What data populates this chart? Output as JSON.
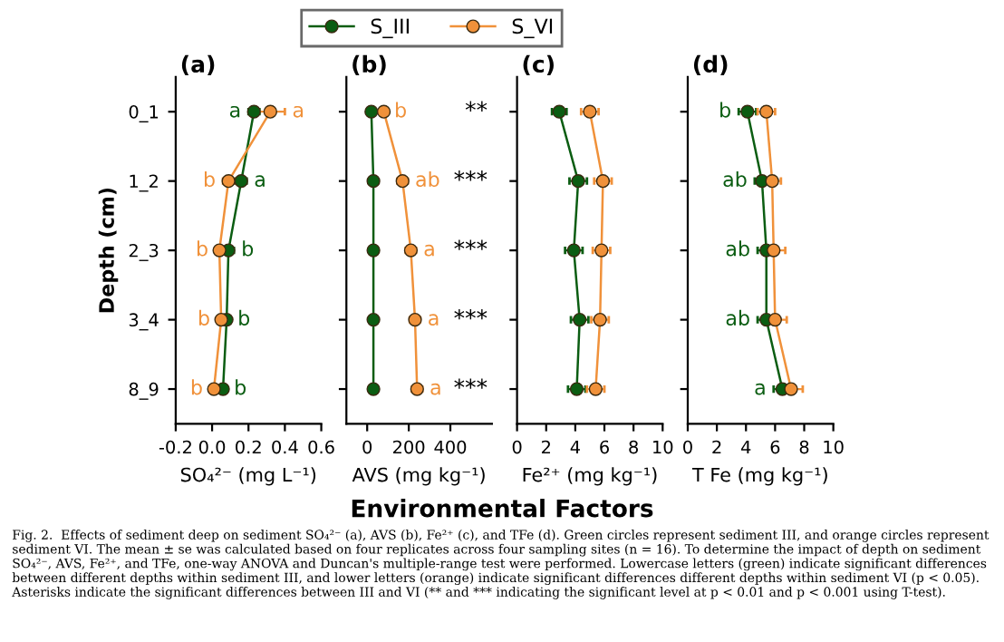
{
  "chart_data": [
    {
      "type": "line",
      "orientation": "horizontal",
      "title": "(a)",
      "ylabel": "Depth (cm)",
      "xlabel": "SO₄²⁻ (mg L⁻¹)",
      "categories": [
        "0_1",
        "1_2",
        "2_3",
        "3_4",
        "8_9"
      ],
      "xlim": [
        -0.2,
        0.6
      ],
      "xticks": [
        -0.2,
        {
          "value": 0,
          "label": "0.0"
        },
        0.2,
        0.4,
        0.6
      ],
      "marker": "circle",
      "grid": false,
      "legend": "top",
      "series": [
        {
          "name": "S_III",
          "color": "#0b5d12",
          "values": [
            0.23,
            0.16,
            0.09,
            0.08,
            0.06
          ],
          "errors": [
            0.03,
            0.03,
            0.03,
            0.02,
            0.02
          ],
          "value_labels": [
            "a",
            "a",
            "b",
            "b",
            "b"
          ]
        },
        {
          "name": "S_VI",
          "color": "#f0913a",
          "values": [
            0.32,
            0.09,
            0.04,
            0.05,
            0.01
          ],
          "errors": [
            0.08,
            0.03,
            0.02,
            0.02,
            0.02
          ],
          "value_labels": [
            "a",
            "b",
            "b",
            "b",
            "b"
          ]
        }
      ],
      "annotations": [
        "Environmental Factors",
        "Fig. 2.  Effects of sediment deep on sediment SO₄²⁻ (a), AVS (b), Fe²⁺ (c), and TFe (d). Green circles represent sediment III, and orange circles represent sediment VI. The mean ± se was calculated based on four replicates across four sampling sites (n = 16). To determine the impact of depth on sediment SO₄²⁻, AVS, Fe²⁺, and TFe, one-way ANOVA and Duncan's multiple-range test were performed. Lowercase letters (green) indicate significant differences between different depths within sediment III, and lower letters (orange) indicate significant differences different depths within sediment VI (p < 0.05). Asterisks indicate the significant differences between III and VI (** and *** indicating the significant level at p < 0.01 and p < 0.001 using T-test)."
      ]
    },
    {
      "type": "line",
      "orientation": "horizontal",
      "title": "(b)",
      "xlabel": "AVS (mg kg⁻¹)",
      "categories": [
        null,
        null,
        null,
        null,
        null
      ],
      "xlim": [
        -100,
        600
      ],
      "xticks": [
        0,
        200,
        400
      ],
      "marker": "circle",
      "grid": false,
      "series": [
        {
          "color": "#0b5d12",
          "values": [
            20,
            30,
            30,
            30,
            30
          ],
          "errors": [
            5,
            5,
            5,
            5,
            5
          ]
        },
        {
          "color": "#f0913a",
          "values": [
            80,
            170,
            210,
            230,
            240
          ],
          "errors": [
            15,
            25,
            25,
            25,
            25
          ],
          "value_labels": [
            "b",
            "ab",
            "a",
            "a",
            "a"
          ]
        }
      ],
      "annotations": [
        "**",
        "***",
        "***",
        "***",
        "***"
      ]
    },
    {
      "type": "line",
      "orientation": "horizontal",
      "title": "(c)",
      "xlabel": "Fe²⁺ (mg kg⁻¹)",
      "categories": [
        null,
        null,
        null,
        null,
        null
      ],
      "xlim": [
        0,
        10
      ],
      "xticks": [
        0,
        2,
        4,
        6,
        8,
        10
      ],
      "marker": "circle",
      "grid": false,
      "series": [
        {
          "color": "#0b5d12",
          "values": [
            2.9,
            4.2,
            3.9,
            4.3,
            4.1
          ],
          "errors": [
            0.5,
            0.6,
            0.6,
            0.6,
            0.6
          ]
        },
        {
          "color": "#f0913a",
          "values": [
            5.0,
            5.9,
            5.8,
            5.7,
            5.4
          ],
          "errors": [
            0.6,
            0.6,
            0.6,
            0.6,
            0.6
          ]
        }
      ]
    },
    {
      "type": "line",
      "orientation": "horizontal",
      "title": "(d)",
      "xlabel": "T Fe (mg kg⁻¹)",
      "categories": [
        null,
        null,
        null,
        null,
        null
      ],
      "xlim": [
        0,
        10
      ],
      "xticks": [
        0,
        2,
        4,
        6,
        8,
        10
      ],
      "marker": "circle",
      "grid": false,
      "series": [
        {
          "color": "#0b5d12",
          "values": [
            4.1,
            5.1,
            5.4,
            5.4,
            6.5
          ],
          "errors": [
            0.6,
            0.5,
            0.6,
            0.6,
            0.6
          ],
          "value_labels": [
            "b",
            "ab",
            "ab",
            "ab",
            "a"
          ]
        },
        {
          "color": "#f0913a",
          "values": [
            5.4,
            5.8,
            5.9,
            6.0,
            7.1
          ],
          "errors": [
            0.6,
            0.6,
            0.8,
            0.8,
            0.8
          ]
        }
      ]
    }
  ]
}
